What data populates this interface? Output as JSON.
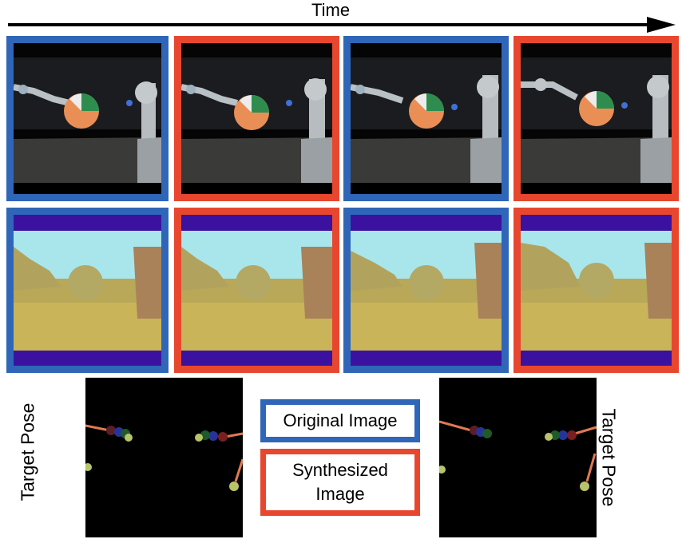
{
  "header": {
    "time_label": "Time"
  },
  "colors": {
    "original": "#2f66b8",
    "synthesized": "#e8472f"
  },
  "rows": {
    "rgb": [
      "original",
      "synthesized",
      "original",
      "synthesized"
    ],
    "depth": [
      "original",
      "synthesized",
      "original",
      "synthesized"
    ]
  },
  "pose": {
    "left_label": "Target Pose",
    "right_label": "Target Pose"
  },
  "legend": {
    "original_label": "Original Image",
    "synthesized_line1": "Synthesized",
    "synthesized_line2": "Image"
  }
}
